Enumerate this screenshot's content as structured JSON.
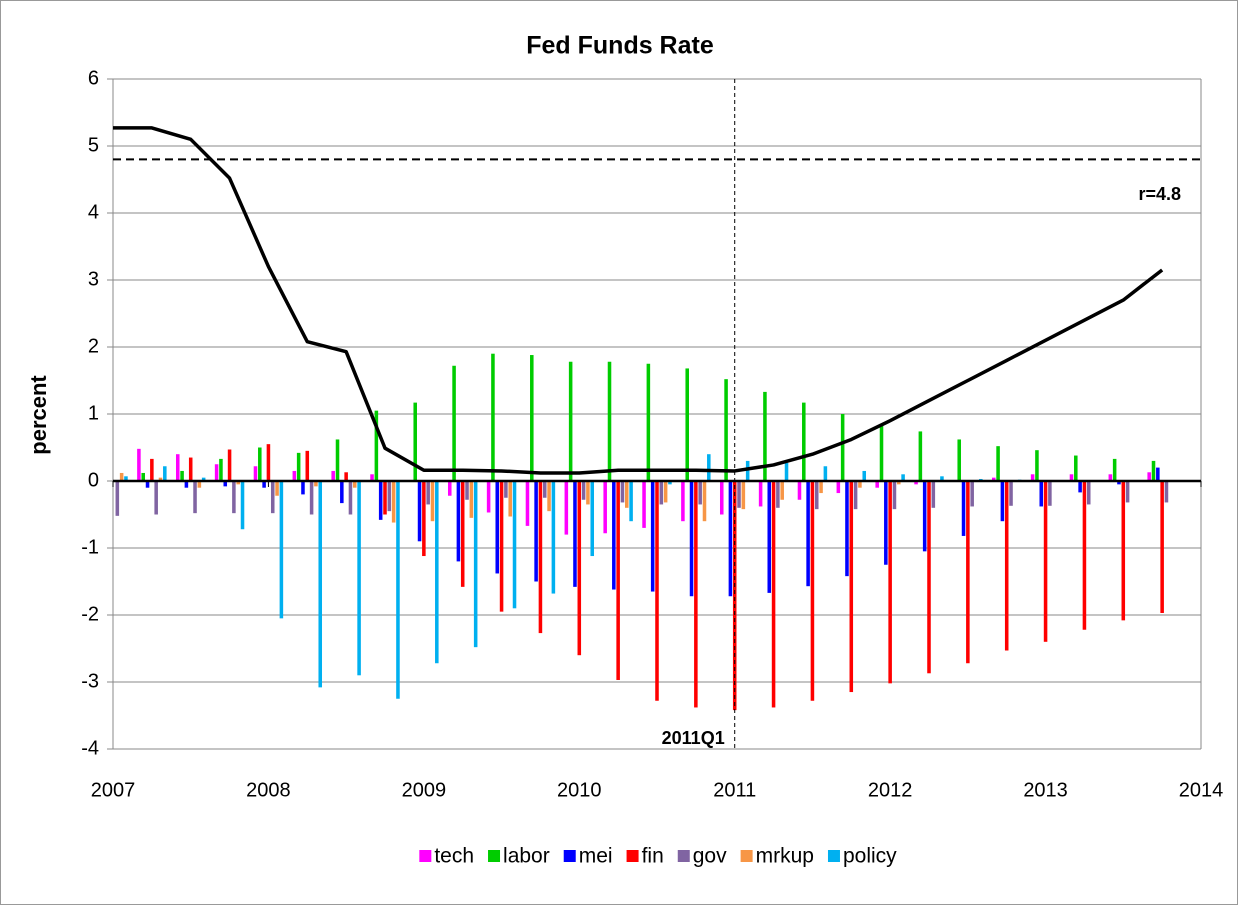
{
  "chart_data": {
    "type": "bar",
    "title": "Fed Funds Rate",
    "y_label": "percent",
    "x": [
      2007,
      2007.25,
      2007.5,
      2007.75,
      2008,
      2008.25,
      2008.5,
      2008.75,
      2009,
      2009.25,
      2009.5,
      2009.75,
      2010,
      2010.25,
      2010.5,
      2010.75,
      2011,
      2011.25,
      2011.5,
      2011.75,
      2012,
      2012.25,
      2012.5,
      2012.75,
      2013,
      2013.25,
      2013.5,
      2013.75
    ],
    "xlim": [
      2007,
      2014
    ],
    "xticks": [
      2007,
      2008,
      2009,
      2010,
      2011,
      2012,
      2013,
      2014
    ],
    "ylim": [
      -4,
      6
    ],
    "yticks": [
      -4,
      -3,
      -2,
      -1,
      0,
      1,
      2,
      3,
      4,
      5,
      6
    ],
    "grid": true,
    "series": [
      {
        "name": "tech",
        "color": "#ff00ff",
        "values": [
          0.3,
          0.48,
          0.4,
          0.25,
          0.22,
          0.15,
          0.15,
          0.1,
          0.0,
          -0.22,
          -0.47,
          -0.67,
          -0.8,
          -0.78,
          -0.7,
          -0.6,
          -0.5,
          -0.38,
          -0.28,
          -0.18,
          -0.1,
          -0.05,
          0.0,
          0.05,
          0.1,
          0.1,
          0.1,
          0.13
        ]
      },
      {
        "name": "labor",
        "color": "#00cc00",
        "values": [
          0.08,
          0.12,
          0.15,
          0.33,
          0.5,
          0.42,
          0.62,
          1.05,
          1.17,
          1.72,
          1.9,
          1.88,
          1.78,
          1.78,
          1.75,
          1.68,
          1.52,
          1.33,
          1.17,
          1.0,
          0.85,
          0.74,
          0.62,
          0.52,
          0.46,
          0.38,
          0.33,
          0.3
        ]
      },
      {
        "name": "mei",
        "color": "#0000ff",
        "values": [
          0.0,
          -0.1,
          -0.1,
          -0.08,
          -0.1,
          -0.2,
          -0.33,
          -0.58,
          -0.9,
          -1.2,
          -1.38,
          -1.5,
          -1.58,
          -1.62,
          -1.65,
          -1.72,
          -1.72,
          -1.67,
          -1.57,
          -1.42,
          -1.25,
          -1.05,
          -0.82,
          -0.6,
          -0.38,
          -0.17,
          -0.05,
          0.2
        ]
      },
      {
        "name": "fin",
        "color": "#ff0000",
        "values": [
          0.0,
          0.33,
          0.35,
          0.47,
          0.55,
          0.45,
          0.13,
          -0.5,
          -1.12,
          -1.58,
          -1.95,
          -2.27,
          -2.6,
          -2.97,
          -3.28,
          -3.38,
          -3.42,
          -3.38,
          -3.28,
          -3.15,
          -3.02,
          -2.87,
          -2.72,
          -2.53,
          -2.4,
          -2.22,
          -2.08,
          -1.97
        ]
      },
      {
        "name": "gov",
        "color": "#8064a2",
        "values": [
          -0.52,
          -0.5,
          -0.48,
          -0.48,
          -0.48,
          -0.5,
          -0.5,
          -0.45,
          -0.35,
          -0.28,
          -0.25,
          -0.25,
          -0.28,
          -0.32,
          -0.35,
          -0.35,
          -0.4,
          -0.4,
          -0.42,
          -0.42,
          -0.42,
          -0.4,
          -0.38,
          -0.37,
          -0.37,
          -0.35,
          -0.32,
          -0.32
        ]
      },
      {
        "name": "mrkup",
        "color": "#f79646",
        "values": [
          0.12,
          0.05,
          -0.1,
          -0.05,
          -0.22,
          -0.08,
          -0.1,
          -0.62,
          -0.6,
          -0.55,
          -0.53,
          -0.45,
          -0.35,
          -0.4,
          -0.32,
          -0.6,
          -0.42,
          -0.28,
          -0.18,
          -0.1,
          -0.05,
          0.0,
          0.0,
          0.0,
          0.0,
          0.0,
          0.0,
          0.0
        ]
      },
      {
        "name": "policy",
        "color": "#00b0f0",
        "values": [
          0.07,
          0.22,
          0.05,
          -0.72,
          -2.05,
          -3.08,
          -2.9,
          -3.25,
          -2.72,
          -2.48,
          -1.9,
          -1.68,
          -1.12,
          -0.6,
          -0.05,
          0.4,
          0.3,
          0.27,
          0.22,
          0.15,
          0.1,
          0.07,
          0.03,
          0.02,
          0.0,
          0.0,
          0.0,
          0.0
        ]
      },
      {
        "type": "line",
        "color": "#000000",
        "values": [
          5.27,
          5.27,
          5.1,
          4.52,
          3.2,
          2.08,
          1.93,
          0.49,
          0.16,
          0.16,
          0.15,
          0.12,
          0.12,
          0.16,
          0.16,
          0.16,
          0.15,
          0.24,
          0.4,
          0.62,
          0.9,
          1.2,
          1.5,
          1.8,
          2.1,
          2.4,
          2.7,
          3.15
        ]
      }
    ],
    "hlines": [
      {
        "value": 4.8,
        "label": "r=4.8"
      }
    ],
    "vlines": [
      {
        "value": 2011,
        "label": "2011Q1"
      }
    ]
  }
}
